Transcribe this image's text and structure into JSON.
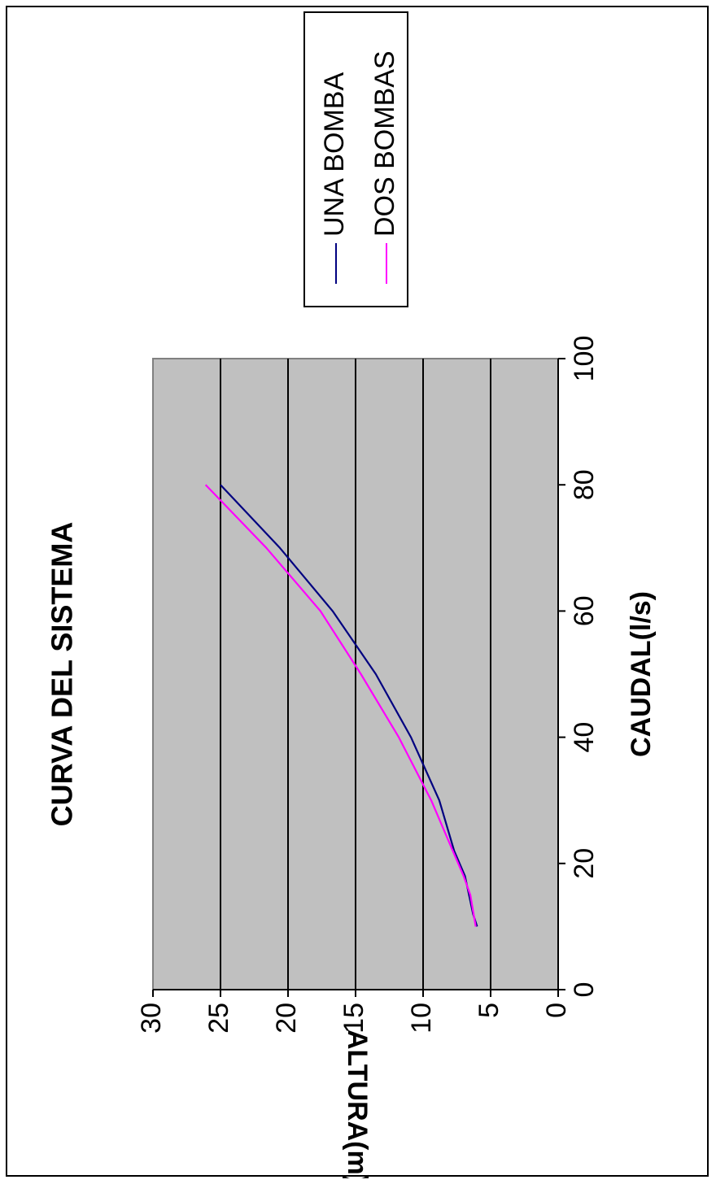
{
  "chart_data": {
    "type": "line",
    "title": "CURVA DEL SISTEMA",
    "xlabel": "CAUDAL(l/s)",
    "ylabel": "ALTURA(m)",
    "xlim": [
      0,
      100
    ],
    "ylim": [
      0,
      30
    ],
    "x_ticks": [
      0,
      20,
      40,
      60,
      80,
      100
    ],
    "y_ticks": [
      0,
      5,
      10,
      15,
      20,
      25,
      30
    ],
    "grid": "horizontal",
    "plot_background": "#c0c0c0",
    "legend_position": "right",
    "series": [
      {
        "name": "UNA BOMBA",
        "color": "#000080",
        "points": [
          [
            10,
            6.0
          ],
          [
            12,
            6.3
          ],
          [
            18,
            6.9
          ],
          [
            22,
            7.7
          ],
          [
            30,
            8.8
          ],
          [
            40,
            10.9
          ],
          [
            50,
            13.5
          ],
          [
            60,
            16.7
          ],
          [
            70,
            20.6
          ],
          [
            80,
            25.0
          ]
        ]
      },
      {
        "name": "DOS BOMBAS",
        "color": "#ff00ff",
        "points": [
          [
            10,
            6.1
          ],
          [
            15,
            6.5
          ],
          [
            18,
            7.0
          ],
          [
            22,
            7.8
          ],
          [
            30,
            9.4
          ],
          [
            40,
            11.8
          ],
          [
            50,
            14.6
          ],
          [
            60,
            17.6
          ],
          [
            70,
            21.6
          ],
          [
            80,
            26.1
          ]
        ]
      }
    ]
  }
}
